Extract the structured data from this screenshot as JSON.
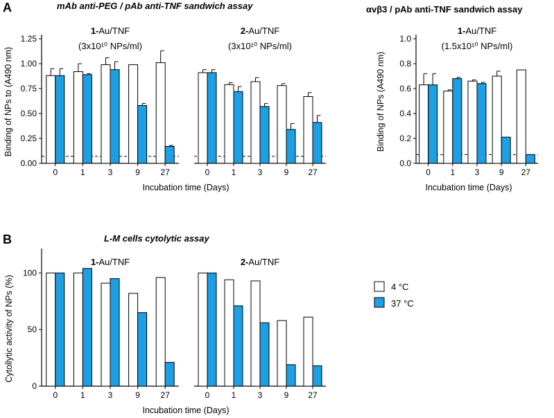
{
  "panel_a": {
    "label": "A",
    "title_left": "mAb anti-PEG / pAb anti-TNF sandwich assay",
    "title_right": "αvβ3 / pAb anti-TNF sandwich assay",
    "ylabel_left": "Binding of NPs to (A490 nm)",
    "ylabel_right": "Binding of NPs (A490 nm)",
    "xlabel": "Incubation time (Days)"
  },
  "panel_b": {
    "label": "B",
    "title": "L-M cells cytolytic assay",
    "ylabel": "Cytollytic activity of NPs (%)",
    "xlabel": "Incubation time (Days)"
  },
  "legend": {
    "items": [
      {
        "label": "4 °C",
        "color": "#ffffff"
      },
      {
        "label": "37 °C",
        "color": "#1e9fe3"
      }
    ]
  },
  "colors": {
    "bar_4c": "#ffffff",
    "bar_37c": "#1e9fe3",
    "stroke": "#000000"
  },
  "chart_data": [
    {
      "id": "a1",
      "type": "bar",
      "title_bold": "1-",
      "title_rest": "Au/TNF",
      "subtitle": "(3x10¹⁰ NPs/ml)",
      "categories": [
        "0",
        "1",
        "3",
        "9",
        "27"
      ],
      "ylim": [
        0,
        1.25
      ],
      "yticks": [
        "0.00",
        "0.25",
        "0.50",
        "0.75",
        "1.00",
        "1.25"
      ],
      "baseline": 0.07,
      "series": [
        {
          "name": "4 °C",
          "values": [
            0.88,
            0.92,
            0.99,
            0.99,
            1.01
          ],
          "errors": [
            0.07,
            0.08,
            0.07,
            0,
            0.12
          ]
        },
        {
          "name": "37 °C",
          "values": [
            0.88,
            0.89,
            0.94,
            0.58,
            0.17
          ],
          "errors": [
            0.07,
            0.01,
            0.08,
            0.02,
            0.01
          ]
        }
      ]
    },
    {
      "id": "a2",
      "type": "bar",
      "title_bold": "2-",
      "title_rest": "Au/TNF",
      "subtitle": "(3x10¹⁰ NPs/ml)",
      "categories": [
        "0",
        "1",
        "3",
        "9",
        "27"
      ],
      "ylim": [
        0,
        1.25
      ],
      "baseline": 0.07,
      "series": [
        {
          "name": "4 °C",
          "values": [
            0.91,
            0.79,
            0.82,
            0.78,
            0.67
          ],
          "errors": [
            0.03,
            0.02,
            0.04,
            0.02,
            0.04
          ]
        },
        {
          "name": "37 °C",
          "values": [
            0.91,
            0.72,
            0.57,
            0.34,
            0.41
          ],
          "errors": [
            0.03,
            0.05,
            0.03,
            0.06,
            0.07
          ]
        }
      ]
    },
    {
      "id": "a3",
      "type": "bar",
      "title_bold": "1-",
      "title_rest": "Au/TNF",
      "subtitle": "(1.5x10¹⁰ NPs/ml)",
      "categories": [
        "0",
        "1",
        "3",
        "9",
        "27"
      ],
      "ylim": [
        0,
        1.0
      ],
      "yticks": [
        "0.0",
        "0.2",
        "0.4",
        "0.6",
        "0.8",
        "1.0"
      ],
      "baseline": 0.07,
      "series": [
        {
          "name": "4 °C",
          "values": [
            0.63,
            0.58,
            0.66,
            0.7,
            0.75
          ],
          "errors": [
            0.09,
            0.01,
            0.01,
            0.04,
            0
          ]
        },
        {
          "name": "37 °C",
          "values": [
            0.63,
            0.68,
            0.64,
            0.21,
            0.07
          ],
          "errors": [
            0.09,
            0.01,
            0.01,
            0,
            0
          ]
        }
      ]
    },
    {
      "id": "b1",
      "type": "bar",
      "title_bold": "1-",
      "title_rest": "Au/TNF",
      "categories": [
        "0",
        "1",
        "3",
        "9",
        "27"
      ],
      "ylim": [
        0,
        118
      ],
      "yticks": [
        "0",
        "50",
        "100"
      ],
      "series": [
        {
          "name": "4 °C",
          "values": [
            100,
            100,
            91,
            82,
            96
          ]
        },
        {
          "name": "37 °C",
          "values": [
            100,
            104,
            95,
            65,
            21
          ]
        }
      ]
    },
    {
      "id": "b2",
      "type": "bar",
      "title_bold": "2-",
      "title_rest": "Au/TNF",
      "categories": [
        "0",
        "1",
        "3",
        "9",
        "27"
      ],
      "ylim": [
        0,
        118
      ],
      "series": [
        {
          "name": "4 °C",
          "values": [
            100,
            94,
            93,
            58,
            61
          ]
        },
        {
          "name": "37 °C",
          "values": [
            100,
            71,
            56,
            19,
            18
          ]
        }
      ]
    }
  ]
}
